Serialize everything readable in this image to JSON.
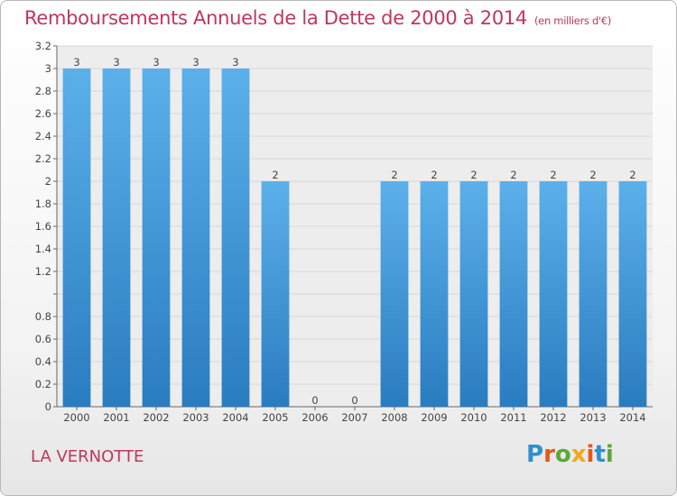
{
  "header": {
    "title": "Remboursements Annuels de la Dette de 2000 à 2014",
    "subtitle": "(en milliers d'€)"
  },
  "footer": {
    "commune": "LA VERNOTTE",
    "logo_text": "Proxiti",
    "logo_letter_colors": [
      "#2f8fcf",
      "#e8571b",
      "#5aa83a",
      "#f2a81d",
      "#e8571b",
      "#2f8fcf",
      "#5aa83a"
    ]
  },
  "colors": {
    "title": "#c1365b",
    "bar_light": "#5cb0ea",
    "bar_dark": "#2a7cc0",
    "grid": "#d6d6d6"
  },
  "chart_data": {
    "type": "bar",
    "title": "Remboursements Annuels de la Dette de 2000 à 2014",
    "subtitle": "(en milliers d'€)",
    "categories": [
      "2000",
      "2001",
      "2002",
      "2003",
      "2004",
      "2005",
      "2006",
      "2007",
      "2008",
      "2009",
      "2010",
      "2011",
      "2012",
      "2013",
      "2014"
    ],
    "values": [
      3,
      3,
      3,
      3,
      3,
      2,
      0,
      0,
      2,
      2,
      2,
      2,
      2,
      2,
      2
    ],
    "data_labels": [
      "3",
      "3",
      "3",
      "3",
      "3",
      "2",
      "0",
      "0",
      "2",
      "2",
      "2",
      "2",
      "2",
      "2",
      "2"
    ],
    "ylim": [
      0,
      3.2
    ],
    "y_ticks": [
      0,
      0.2,
      0.4,
      0.6,
      0.8,
      1,
      1.2,
      1.4,
      1.6,
      1.8,
      2,
      2.2,
      2.4,
      2.6,
      2.8,
      3,
      3.2
    ],
    "y_tick_labels": [
      "0",
      "0.2",
      "0.4",
      "0.6",
      "0.8",
      "",
      "1.2",
      "1.4",
      "1.6",
      "1.8",
      "2",
      "2.2",
      "2.4",
      "2.6",
      "2.8",
      "3",
      "3.2"
    ],
    "grid": true
  }
}
